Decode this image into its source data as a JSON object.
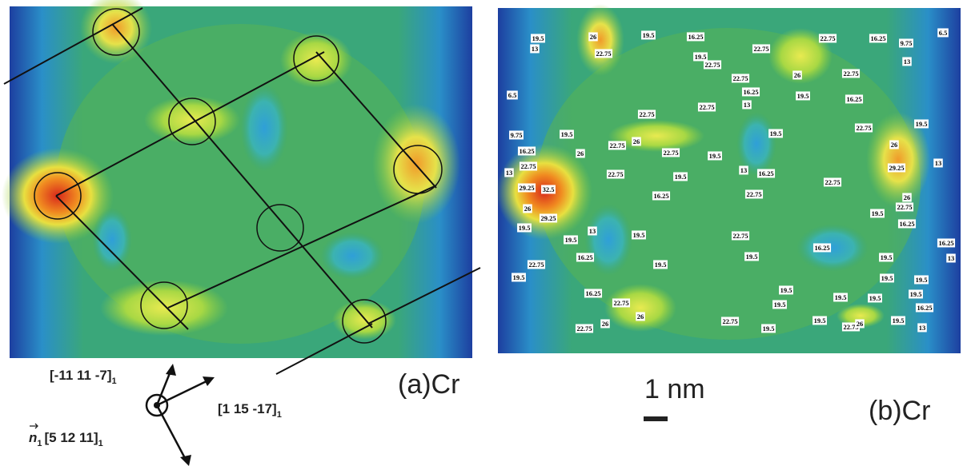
{
  "panels": [
    {
      "label": "(a)Cr"
    },
    {
      "label": "(b)Cr"
    }
  ],
  "scale_bar": "1 nm",
  "directions": [
    {
      "text": "[-11 11 -7]",
      "subscript": "1"
    },
    {
      "text": "[1 15 -17]",
      "subscript": "1"
    },
    {
      "symbol": "n",
      "symbol_subscript": "1",
      "text": "[5 12 11]",
      "subscript": "1"
    }
  ],
  "contour_labels": [
    "19.5",
    "26",
    "13",
    "22.75",
    "19.5",
    "16.25",
    "19.5",
    "22.75",
    "22.75",
    "22.75",
    "16.25",
    "9.75",
    "6.5",
    "13",
    "22.75",
    "26",
    "22.75",
    "16.25",
    "13",
    "19.5",
    "6.5",
    "16.25",
    "22.75",
    "22.75",
    "22.75",
    "19.5",
    "9.75",
    "19.5",
    "22.75",
    "26",
    "22.75",
    "19.5",
    "19.5",
    "26",
    "16.25",
    "26",
    "22.75",
    "22.75",
    "19.5",
    "13",
    "16.25",
    "29.25",
    "13",
    "13",
    "22.75",
    "29.25",
    "32.5",
    "22.75",
    "16.25",
    "26",
    "26",
    "29.25",
    "22.75",
    "19.5",
    "16.25",
    "19.5",
    "13",
    "19.5",
    "19.5",
    "22.75",
    "16.25",
    "16.25",
    "16.25",
    "19.5",
    "19.5",
    "13",
    "22.75",
    "19.5",
    "19.5",
    "19.5",
    "19.5",
    "19.5",
    "19.5",
    "16.25",
    "19.5",
    "19.5",
    "19.5",
    "22.75",
    "16.25",
    "26",
    "19.5",
    "19.5",
    "22.75",
    "26",
    "19.5",
    "22.75",
    "26",
    "22.75",
    "13"
  ]
}
